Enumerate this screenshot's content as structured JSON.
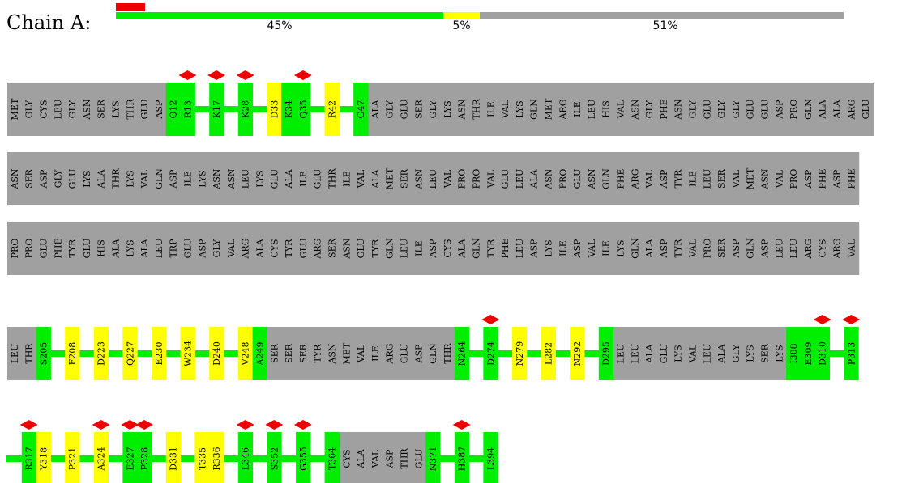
{
  "chain": {
    "label": "Chain A:",
    "summary": [
      {
        "percent": "45%",
        "fraction": 0.45,
        "color": "#00ee00"
      },
      {
        "percent": "5%",
        "fraction": 0.05,
        "color": "#ffff00"
      },
      {
        "percent": "51%",
        "fraction": 0.51,
        "color": "#a0a0a0"
      }
    ],
    "outlier_fraction": 0.04
  },
  "colors": {
    "green": "#00ee00",
    "yellow": "#ffff00",
    "gray": "#a0a0a0",
    "outlier": "#ee0000"
  },
  "rows": [
    {
      "residues": [
        {
          "t": "MET",
          "c": "gray"
        },
        {
          "t": "GLY",
          "c": "gray"
        },
        {
          "t": "CYS",
          "c": "gray"
        },
        {
          "t": "LEU",
          "c": "gray"
        },
        {
          "t": "GLY",
          "c": "gray"
        },
        {
          "t": "ASN",
          "c": "gray"
        },
        {
          "t": "SER",
          "c": "gray"
        },
        {
          "t": "LYS",
          "c": "gray"
        },
        {
          "t": "THR",
          "c": "gray"
        },
        {
          "t": "GLU",
          "c": "gray"
        },
        {
          "t": "ASP",
          "c": "gray"
        },
        {
          "t": "Q12",
          "c": "green"
        },
        {
          "t": "R13",
          "c": "green",
          "d": 1
        },
        {
          "t": "",
          "c": "line"
        },
        {
          "t": "K17",
          "c": "green",
          "d": 1
        },
        {
          "t": "",
          "c": "line"
        },
        {
          "t": "K28",
          "c": "green",
          "d": 1
        },
        {
          "t": "",
          "c": "line"
        },
        {
          "t": "D33",
          "c": "yellow"
        },
        {
          "t": "K34",
          "c": "green"
        },
        {
          "t": "Q35",
          "c": "green",
          "d": 1
        },
        {
          "t": "",
          "c": "line"
        },
        {
          "t": "R42",
          "c": "yellow"
        },
        {
          "t": "",
          "c": "line"
        },
        {
          "t": "G47",
          "c": "green"
        },
        {
          "t": "ALA",
          "c": "gray"
        },
        {
          "t": "GLY",
          "c": "gray"
        },
        {
          "t": "GLU",
          "c": "gray"
        },
        {
          "t": "SER",
          "c": "gray"
        },
        {
          "t": "GLY",
          "c": "gray"
        },
        {
          "t": "LYS",
          "c": "gray"
        },
        {
          "t": "ASN",
          "c": "gray"
        },
        {
          "t": "THR",
          "c": "gray"
        },
        {
          "t": "ILE",
          "c": "gray"
        },
        {
          "t": "VAL",
          "c": "gray"
        },
        {
          "t": "LYS",
          "c": "gray"
        },
        {
          "t": "GLN",
          "c": "gray"
        },
        {
          "t": "MET",
          "c": "gray"
        },
        {
          "t": "ARG",
          "c": "gray"
        },
        {
          "t": "ILE",
          "c": "gray"
        },
        {
          "t": "LEU",
          "c": "gray"
        },
        {
          "t": "HIS",
          "c": "gray"
        },
        {
          "t": "VAL",
          "c": "gray"
        },
        {
          "t": "ASN",
          "c": "gray"
        },
        {
          "t": "GLY",
          "c": "gray"
        },
        {
          "t": "PHE",
          "c": "gray"
        },
        {
          "t": "ASN",
          "c": "gray"
        },
        {
          "t": "GLY",
          "c": "gray"
        },
        {
          "t": "GLU",
          "c": "gray"
        },
        {
          "t": "GLY",
          "c": "gray"
        },
        {
          "t": "GLY",
          "c": "gray"
        },
        {
          "t": "GLU",
          "c": "gray"
        },
        {
          "t": "GLU",
          "c": "gray"
        },
        {
          "t": "ASP",
          "c": "gray"
        },
        {
          "t": "PRO",
          "c": "gray"
        },
        {
          "t": "GLN",
          "c": "gray"
        },
        {
          "t": "ALA",
          "c": "gray"
        },
        {
          "t": "ALA",
          "c": "gray"
        },
        {
          "t": "ARG",
          "c": "gray"
        },
        {
          "t": "GLU",
          "c": "gray"
        }
      ]
    },
    {
      "residues": [
        {
          "t": "ASN",
          "c": "gray"
        },
        {
          "t": "SER",
          "c": "gray"
        },
        {
          "t": "ASP",
          "c": "gray"
        },
        {
          "t": "GLY",
          "c": "gray"
        },
        {
          "t": "GLU",
          "c": "gray"
        },
        {
          "t": "LYS",
          "c": "gray"
        },
        {
          "t": "ALA",
          "c": "gray"
        },
        {
          "t": "THR",
          "c": "gray"
        },
        {
          "t": "LYS",
          "c": "gray"
        },
        {
          "t": "VAL",
          "c": "gray"
        },
        {
          "t": "GLN",
          "c": "gray"
        },
        {
          "t": "ASP",
          "c": "gray"
        },
        {
          "t": "ILE",
          "c": "gray"
        },
        {
          "t": "LYS",
          "c": "gray"
        },
        {
          "t": "ASN",
          "c": "gray"
        },
        {
          "t": "ASN",
          "c": "gray"
        },
        {
          "t": "LEU",
          "c": "gray"
        },
        {
          "t": "LYS",
          "c": "gray"
        },
        {
          "t": "GLU",
          "c": "gray"
        },
        {
          "t": "ALA",
          "c": "gray"
        },
        {
          "t": "ILE",
          "c": "gray"
        },
        {
          "t": "GLU",
          "c": "gray"
        },
        {
          "t": "THR",
          "c": "gray"
        },
        {
          "t": "ILE",
          "c": "gray"
        },
        {
          "t": "VAL",
          "c": "gray"
        },
        {
          "t": "ALA",
          "c": "gray"
        },
        {
          "t": "MET",
          "c": "gray"
        },
        {
          "t": "SER",
          "c": "gray"
        },
        {
          "t": "ASN",
          "c": "gray"
        },
        {
          "t": "LEU",
          "c": "gray"
        },
        {
          "t": "VAL",
          "c": "gray"
        },
        {
          "t": "PRO",
          "c": "gray"
        },
        {
          "t": "PRO",
          "c": "gray"
        },
        {
          "t": "VAL",
          "c": "gray"
        },
        {
          "t": "GLU",
          "c": "gray"
        },
        {
          "t": "LEU",
          "c": "gray"
        },
        {
          "t": "ALA",
          "c": "gray"
        },
        {
          "t": "ASN",
          "c": "gray"
        },
        {
          "t": "PRO",
          "c": "gray"
        },
        {
          "t": "GLU",
          "c": "gray"
        },
        {
          "t": "ASN",
          "c": "gray"
        },
        {
          "t": "GLN",
          "c": "gray"
        },
        {
          "t": "PHE",
          "c": "gray"
        },
        {
          "t": "ARG",
          "c": "gray"
        },
        {
          "t": "VAL",
          "c": "gray"
        },
        {
          "t": "ASP",
          "c": "gray"
        },
        {
          "t": "TYR",
          "c": "gray"
        },
        {
          "t": "ILE",
          "c": "gray"
        },
        {
          "t": "LEU",
          "c": "gray"
        },
        {
          "t": "SER",
          "c": "gray"
        },
        {
          "t": "VAL",
          "c": "gray"
        },
        {
          "t": "MET",
          "c": "gray"
        },
        {
          "t": "ASN",
          "c": "gray"
        },
        {
          "t": "VAL",
          "c": "gray"
        },
        {
          "t": "PRO",
          "c": "gray"
        },
        {
          "t": "ASP",
          "c": "gray"
        },
        {
          "t": "PHE",
          "c": "gray"
        },
        {
          "t": "ASP",
          "c": "gray"
        },
        {
          "t": "PHE",
          "c": "gray"
        }
      ]
    },
    {
      "residues": [
        {
          "t": "PRO",
          "c": "gray"
        },
        {
          "t": "PRO",
          "c": "gray"
        },
        {
          "t": "GLU",
          "c": "gray"
        },
        {
          "t": "PHE",
          "c": "gray"
        },
        {
          "t": "TYR",
          "c": "gray"
        },
        {
          "t": "GLU",
          "c": "gray"
        },
        {
          "t": "HIS",
          "c": "gray"
        },
        {
          "t": "ALA",
          "c": "gray"
        },
        {
          "t": "LYS",
          "c": "gray"
        },
        {
          "t": "ALA",
          "c": "gray"
        },
        {
          "t": "LEU",
          "c": "gray"
        },
        {
          "t": "TRP",
          "c": "gray"
        },
        {
          "t": "GLU",
          "c": "gray"
        },
        {
          "t": "ASP",
          "c": "gray"
        },
        {
          "t": "GLY",
          "c": "gray"
        },
        {
          "t": "VAL",
          "c": "gray"
        },
        {
          "t": "ARG",
          "c": "gray"
        },
        {
          "t": "ALA",
          "c": "gray"
        },
        {
          "t": "CYS",
          "c": "gray"
        },
        {
          "t": "TYR",
          "c": "gray"
        },
        {
          "t": "GLU",
          "c": "gray"
        },
        {
          "t": "ARG",
          "c": "gray"
        },
        {
          "t": "SER",
          "c": "gray"
        },
        {
          "t": "ASN",
          "c": "gray"
        },
        {
          "t": "GLU",
          "c": "gray"
        },
        {
          "t": "TYR",
          "c": "gray"
        },
        {
          "t": "GLN",
          "c": "gray"
        },
        {
          "t": "LEU",
          "c": "gray"
        },
        {
          "t": "ILE",
          "c": "gray"
        },
        {
          "t": "ASP",
          "c": "gray"
        },
        {
          "t": "CYS",
          "c": "gray"
        },
        {
          "t": "ALA",
          "c": "gray"
        },
        {
          "t": "GLN",
          "c": "gray"
        },
        {
          "t": "TYR",
          "c": "gray"
        },
        {
          "t": "PHE",
          "c": "gray"
        },
        {
          "t": "LEU",
          "c": "gray"
        },
        {
          "t": "ASP",
          "c": "gray"
        },
        {
          "t": "LYS",
          "c": "gray"
        },
        {
          "t": "ILE",
          "c": "gray"
        },
        {
          "t": "ASP",
          "c": "gray"
        },
        {
          "t": "VAL",
          "c": "gray"
        },
        {
          "t": "ILE",
          "c": "gray"
        },
        {
          "t": "LYS",
          "c": "gray"
        },
        {
          "t": "GLN",
          "c": "gray"
        },
        {
          "t": "ALA",
          "c": "gray"
        },
        {
          "t": "ASP",
          "c": "gray"
        },
        {
          "t": "TYR",
          "c": "gray"
        },
        {
          "t": "VAL",
          "c": "gray"
        },
        {
          "t": "PRO",
          "c": "gray"
        },
        {
          "t": "SER",
          "c": "gray"
        },
        {
          "t": "ASP",
          "c": "gray"
        },
        {
          "t": "GLN",
          "c": "gray"
        },
        {
          "t": "ASP",
          "c": "gray"
        },
        {
          "t": "LEU",
          "c": "gray"
        },
        {
          "t": "LEU",
          "c": "gray"
        },
        {
          "t": "ARG",
          "c": "gray"
        },
        {
          "t": "CYS",
          "c": "gray"
        },
        {
          "t": "ARG",
          "c": "gray"
        },
        {
          "t": "VAL",
          "c": "gray"
        }
      ]
    },
    {
      "residues": [
        {
          "t": "LEU",
          "c": "gray"
        },
        {
          "t": "THR",
          "c": "gray"
        },
        {
          "t": "S205",
          "c": "green"
        },
        {
          "t": "",
          "c": "line"
        },
        {
          "t": "F208",
          "c": "yellow"
        },
        {
          "t": "",
          "c": "line"
        },
        {
          "t": "D223",
          "c": "yellow"
        },
        {
          "t": "",
          "c": "line"
        },
        {
          "t": "Q227",
          "c": "yellow"
        },
        {
          "t": "",
          "c": "line"
        },
        {
          "t": "E230",
          "c": "yellow"
        },
        {
          "t": "",
          "c": "line"
        },
        {
          "t": "W234",
          "c": "yellow"
        },
        {
          "t": "",
          "c": "line"
        },
        {
          "t": "D240",
          "c": "yellow"
        },
        {
          "t": "",
          "c": "line"
        },
        {
          "t": "V248",
          "c": "yellow"
        },
        {
          "t": "A249",
          "c": "green"
        },
        {
          "t": "SER",
          "c": "gray"
        },
        {
          "t": "SER",
          "c": "gray"
        },
        {
          "t": "SER",
          "c": "gray"
        },
        {
          "t": "TYR",
          "c": "gray"
        },
        {
          "t": "ASN",
          "c": "gray"
        },
        {
          "t": "MET",
          "c": "gray"
        },
        {
          "t": "VAL",
          "c": "gray"
        },
        {
          "t": "ILE",
          "c": "gray"
        },
        {
          "t": "ARG",
          "c": "gray"
        },
        {
          "t": "GLU",
          "c": "gray"
        },
        {
          "t": "ASP",
          "c": "gray"
        },
        {
          "t": "GLN",
          "c": "gray"
        },
        {
          "t": "THR",
          "c": "gray"
        },
        {
          "t": "N264",
          "c": "green"
        },
        {
          "t": "",
          "c": "line"
        },
        {
          "t": "D274",
          "c": "green",
          "d": 1
        },
        {
          "t": "",
          "c": "line"
        },
        {
          "t": "N279",
          "c": "yellow"
        },
        {
          "t": "",
          "c": "line"
        },
        {
          "t": "L282",
          "c": "yellow"
        },
        {
          "t": "",
          "c": "line"
        },
        {
          "t": "N292",
          "c": "yellow"
        },
        {
          "t": "",
          "c": "line"
        },
        {
          "t": "D295",
          "c": "green"
        },
        {
          "t": "LEU",
          "c": "gray"
        },
        {
          "t": "LEU",
          "c": "gray"
        },
        {
          "t": "ALA",
          "c": "gray"
        },
        {
          "t": "GLU",
          "c": "gray"
        },
        {
          "t": "LYS",
          "c": "gray"
        },
        {
          "t": "VAL",
          "c": "gray"
        },
        {
          "t": "LEU",
          "c": "gray"
        },
        {
          "t": "ALA",
          "c": "gray"
        },
        {
          "t": "GLY",
          "c": "gray"
        },
        {
          "t": "LYS",
          "c": "gray"
        },
        {
          "t": "SER",
          "c": "gray"
        },
        {
          "t": "LYS",
          "c": "gray"
        },
        {
          "t": "I308",
          "c": "green"
        },
        {
          "t": "E309",
          "c": "green"
        },
        {
          "t": "D310",
          "c": "green",
          "d": 1
        },
        {
          "t": "",
          "c": "line"
        },
        {
          "t": "P313",
          "c": "green",
          "d": 1
        }
      ]
    },
    {
      "residues": [
        {
          "t": "",
          "c": "line"
        },
        {
          "t": "R317",
          "c": "green",
          "d": 1
        },
        {
          "t": "Y318",
          "c": "yellow"
        },
        {
          "t": "",
          "c": "line"
        },
        {
          "t": "P321",
          "c": "yellow"
        },
        {
          "t": "",
          "c": "line"
        },
        {
          "t": "A324",
          "c": "yellow",
          "d": 1
        },
        {
          "t": "",
          "c": "line"
        },
        {
          "t": "E327",
          "c": "green",
          "d": 1
        },
        {
          "t": "P328",
          "c": "green",
          "d": 1
        },
        {
          "t": "",
          "c": "line"
        },
        {
          "t": "D331",
          "c": "yellow"
        },
        {
          "t": "",
          "c": "line"
        },
        {
          "t": "T335",
          "c": "yellow"
        },
        {
          "t": "R336",
          "c": "yellow"
        },
        {
          "t": "",
          "c": "line"
        },
        {
          "t": "L346",
          "c": "green",
          "d": 1
        },
        {
          "t": "",
          "c": "line"
        },
        {
          "t": "S352",
          "c": "green",
          "d": 1
        },
        {
          "t": "",
          "c": "line"
        },
        {
          "t": "G355",
          "c": "green",
          "d": 1
        },
        {
          "t": "",
          "c": "line"
        },
        {
          "t": "T364",
          "c": "green"
        },
        {
          "t": "CYS",
          "c": "gray"
        },
        {
          "t": "ALA",
          "c": "gray"
        },
        {
          "t": "VAL",
          "c": "gray"
        },
        {
          "t": "ASP",
          "c": "gray"
        },
        {
          "t": "THR",
          "c": "gray"
        },
        {
          "t": "GLU",
          "c": "gray"
        },
        {
          "t": "N371",
          "c": "green"
        },
        {
          "t": "",
          "c": "line"
        },
        {
          "t": "H387",
          "c": "green",
          "d": 1
        },
        {
          "t": "",
          "c": "line"
        },
        {
          "t": "L394",
          "c": "green"
        }
      ]
    }
  ]
}
